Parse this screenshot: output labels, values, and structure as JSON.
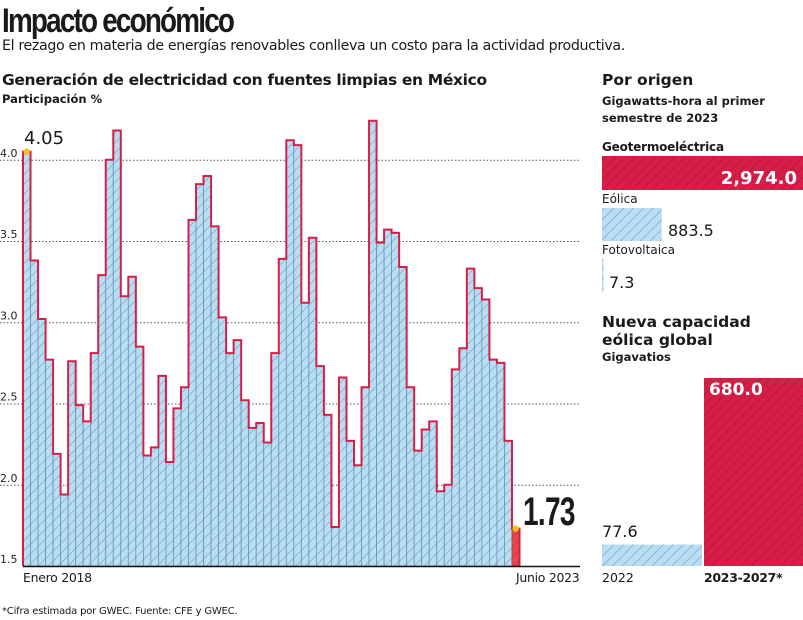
{
  "header": {
    "title": "Impacto económico",
    "subtitle": "El rezago en materia de energías renovables conlleva un costo para la actividad productiva."
  },
  "colors": {
    "blue_fill": "#b8def4",
    "blue_hatch": "#5a86a8",
    "red": "#d61f47",
    "red_last": "#e8464a",
    "marker": "#f6c21a",
    "grid": "#555555"
  },
  "chart_data": [
    {
      "type": "bar",
      "title": "Generación de electricidad con fuentes limpias en México",
      "ylabel": "Participación %",
      "xlabel": "",
      "x_start_label": "Enero 2018",
      "x_end_label": "Junio 2023",
      "ylim": [
        1.5,
        4.3
      ],
      "yticks": [
        "1.5",
        "2.0",
        "2.5",
        "3.0",
        "3.5",
        "4.0"
      ],
      "ytick_values": [
        1.5,
        2.0,
        2.5,
        3.0,
        3.5,
        4.0
      ],
      "grid": true,
      "annotations": {
        "first": "4.05",
        "last": "1.73"
      },
      "values": [
        4.05,
        3.38,
        3.02,
        2.77,
        2.19,
        1.94,
        2.76,
        2.49,
        2.39,
        2.81,
        3.29,
        4.0,
        4.18,
        3.16,
        3.28,
        2.85,
        2.18,
        2.23,
        2.67,
        2.14,
        2.47,
        2.6,
        3.63,
        3.85,
        3.9,
        3.59,
        3.03,
        2.81,
        2.89,
        2.52,
        2.35,
        2.38,
        2.26,
        2.81,
        3.39,
        4.12,
        4.09,
        3.12,
        3.52,
        2.73,
        2.43,
        1.74,
        2.66,
        2.27,
        2.12,
        2.6,
        4.24,
        3.49,
        3.57,
        3.55,
        3.34,
        2.6,
        2.21,
        2.34,
        2.39,
        1.96,
        2.0,
        2.71,
        2.84,
        3.33,
        3.21,
        3.14,
        2.77,
        2.75,
        2.27,
        1.73
      ]
    },
    {
      "type": "bar",
      "orientation": "horizontal",
      "title": "Por origen",
      "subtitle": "Gigawatts-hora al primer semestre de 2023",
      "categories": [
        "Geotermoeléctrica",
        "Eólica",
        "Fotovoltaica"
      ],
      "values": [
        2974.0,
        883.5,
        7.3
      ],
      "value_labels": [
        "2,974.0",
        "883.5",
        "7.3"
      ]
    },
    {
      "type": "bar",
      "title": "Nueva capacidad eólica global",
      "subtitle": "Gigavatios",
      "categories": [
        "2022",
        "2023-2027*"
      ],
      "values": [
        77.6,
        680.0
      ],
      "value_labels": [
        "77.6",
        "680.0"
      ]
    }
  ],
  "footnote": "*Cifra estimada por GWEC. Fuente: CFE y GWEC."
}
